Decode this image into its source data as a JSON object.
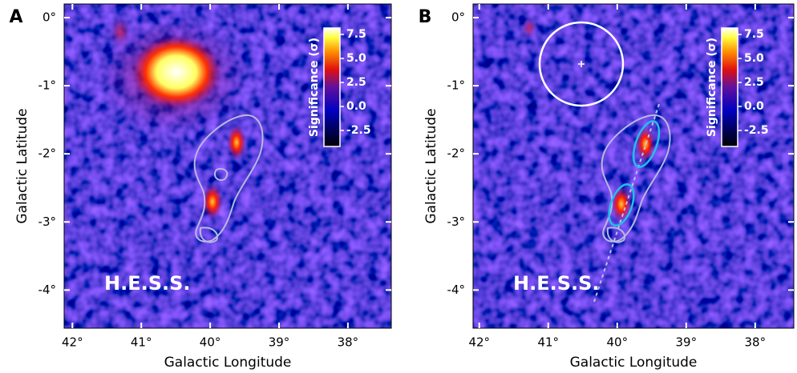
{
  "chart_data": [
    {
      "type": "heatmap",
      "panel": "A",
      "annotation": "H.E.S.S.",
      "xlabel": "Galactic Longitude",
      "ylabel": "Galactic Latitude",
      "xlim": [
        42.12,
        37.37
      ],
      "ylim": [
        -4.56,
        0.2
      ],
      "xticks": [
        {
          "value": 42,
          "label": "42°"
        },
        {
          "value": 41,
          "label": "41°"
        },
        {
          "value": 40,
          "label": "40°"
        },
        {
          "value": 39,
          "label": "39°"
        },
        {
          "value": 38,
          "label": "38°"
        }
      ],
      "yticks": [
        {
          "value": 0,
          "label": "0°"
        },
        {
          "value": -1,
          "label": "-1°"
        },
        {
          "value": -2,
          "label": "-2°"
        },
        {
          "value": -3,
          "label": "-3°"
        },
        {
          "value": -4,
          "label": "-4°"
        }
      ],
      "colorbar": {
        "label": "Significance (σ)",
        "lim": [
          -4.17,
          8.17
        ],
        "ticks": [
          {
            "value": 7.5,
            "label": "7.5"
          },
          {
            "value": 5,
            "label": "5.0"
          },
          {
            "value": 2.5,
            "label": "2.5"
          },
          {
            "value": 0,
            "label": "0.0"
          },
          {
            "value": -2.5,
            "label": "-2.5"
          }
        ]
      }
    },
    {
      "type": "heatmap",
      "panel": "B",
      "annotation": "H.E.S.S.",
      "xlabel": "Galactic Longitude",
      "ylabel": "Galactic Latitude",
      "xlim": [
        42.09,
        37.44
      ],
      "ylim": [
        -4.56,
        0.2
      ],
      "xticks": [
        {
          "value": 42,
          "label": "42°"
        },
        {
          "value": 41,
          "label": "41°"
        },
        {
          "value": 40,
          "label": "40°"
        },
        {
          "value": 39,
          "label": "39°"
        },
        {
          "value": 38,
          "label": "38°"
        }
      ],
      "yticks": [
        {
          "value": 0,
          "label": "0°"
        },
        {
          "value": -1,
          "label": "-1°"
        },
        {
          "value": -2,
          "label": "-2°"
        },
        {
          "value": -3,
          "label": "-3°"
        },
        {
          "value": -4,
          "label": "-4°"
        }
      ],
      "colorbar": {
        "label": "Significance (σ)",
        "lim": [
          -4.17,
          8.17
        ],
        "ticks": [
          {
            "value": 7.5,
            "label": "7.5"
          },
          {
            "value": 5,
            "label": "5.0"
          },
          {
            "value": 2.5,
            "label": "2.5"
          },
          {
            "value": 0,
            "label": "0.0"
          },
          {
            "value": -2.5,
            "label": "-2.5"
          }
        ]
      }
    }
  ]
}
